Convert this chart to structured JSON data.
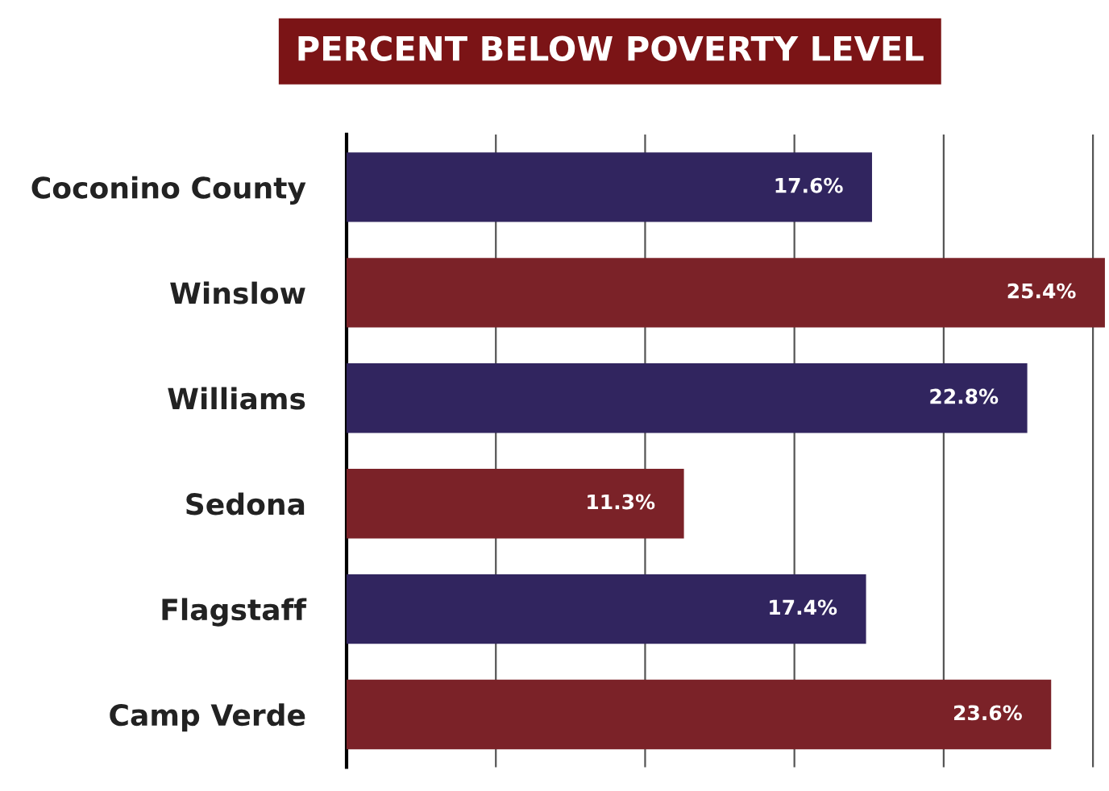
{
  "chart_data": {
    "type": "bar",
    "orientation": "horizontal",
    "title": "PERCENT BELOW POVERTY LEVEL",
    "categories": [
      "Coconino County",
      "Winslow",
      "Williams",
      "Sedona",
      "Flagstaff",
      "Camp Verde"
    ],
    "values": [
      17.6,
      25.4,
      22.8,
      11.3,
      17.4,
      23.6
    ],
    "colors": [
      "#31255f",
      "#7b2228",
      "#31255f",
      "#7b2228",
      "#31255f",
      "#7b2228"
    ],
    "value_labels": [
      "17.6%",
      "25.4%",
      "22.8%",
      "11.3%",
      "17.4%",
      "23.6%"
    ],
    "xlim": [
      0,
      25.5
    ],
    "xticks": [
      {
        "value": 0,
        "label": null
      },
      {
        "value": 5,
        "label": null
      },
      {
        "value": 10,
        "label": null
      },
      {
        "value": 15,
        "label": null
      },
      {
        "value": 20,
        "label": null
      },
      {
        "value": 25,
        "label": null
      }
    ],
    "grid": "x",
    "legend": false
  }
}
